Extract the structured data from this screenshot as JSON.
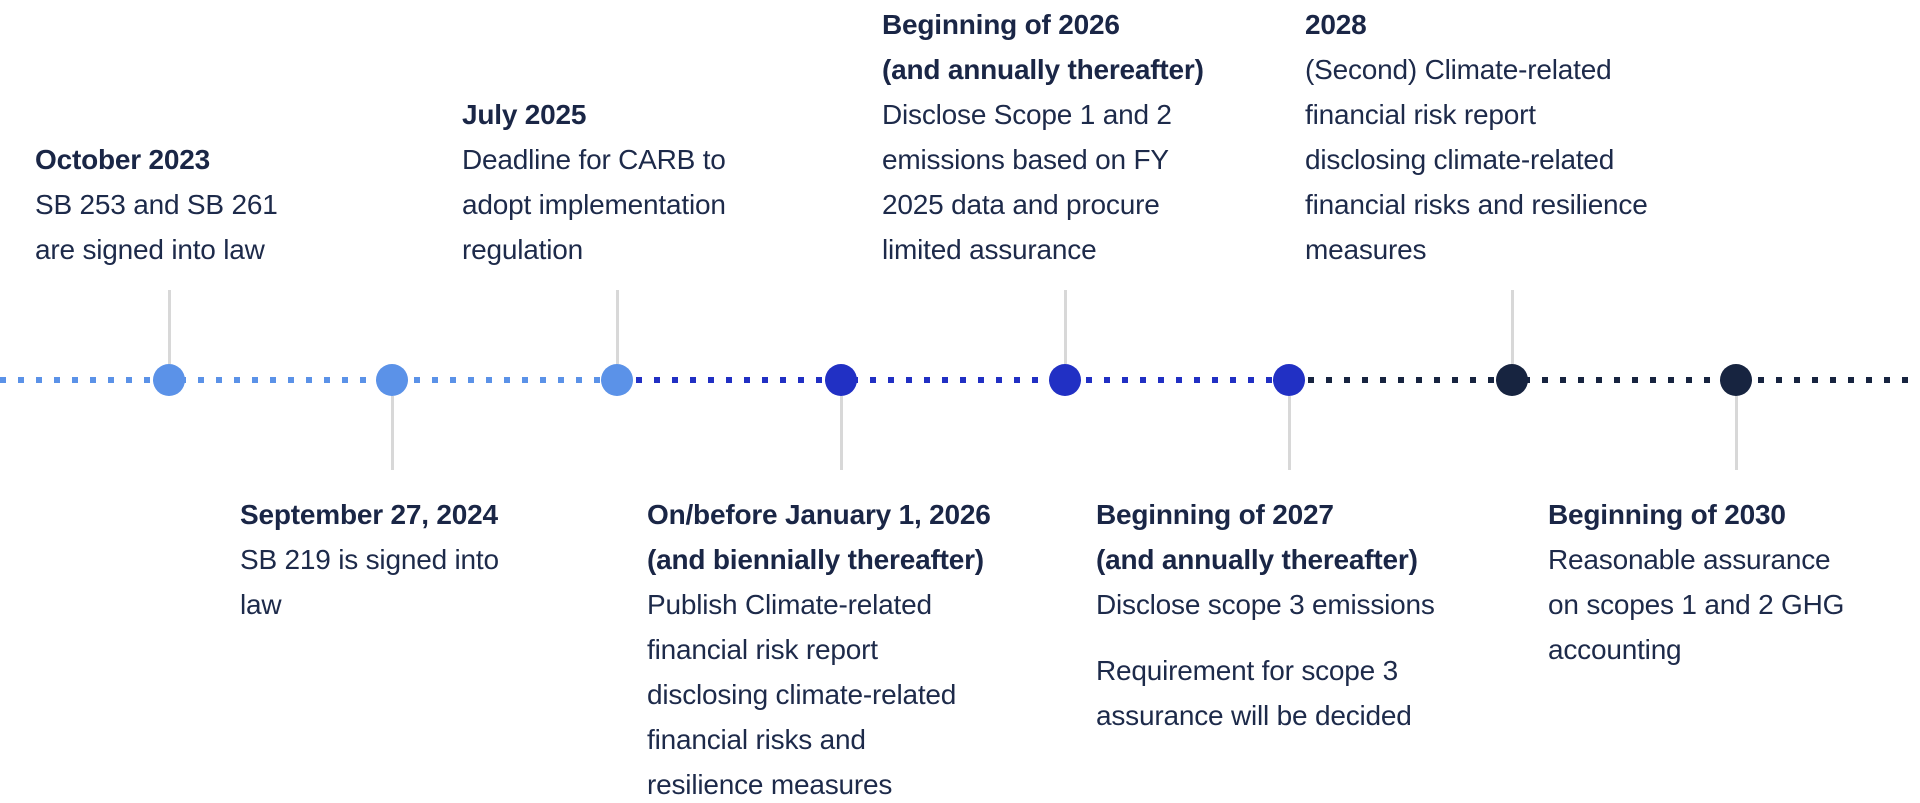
{
  "palette": {
    "light_blue": "#5b92e8",
    "royal_blue": "#2130c4",
    "navy": "#172440",
    "text_navy": "#1d2a4a",
    "stem_gray": "#d8d8d8"
  },
  "timeline": {
    "line_segments": [
      {
        "phase": "signed-laws-period",
        "color": "light_blue"
      },
      {
        "phase": "first-compliance-period",
        "color": "royal_blue"
      },
      {
        "phase": "future-period",
        "color": "navy"
      }
    ],
    "milestones": [
      {
        "id": "oct-2023",
        "side": "above",
        "color": "light_blue",
        "lines": [
          {
            "text": "October 2023",
            "bold": true
          },
          {
            "text": "SB 253 and SB 261",
            "bold": false
          },
          {
            "text": "are signed into law",
            "bold": false
          }
        ]
      },
      {
        "id": "sep-27-2024",
        "side": "below",
        "color": "light_blue",
        "lines": [
          {
            "text": "September 27, 2024",
            "bold": true
          },
          {
            "text": "SB 219 is signed into",
            "bold": false
          },
          {
            "text": "law",
            "bold": false
          }
        ]
      },
      {
        "id": "jul-2025",
        "side": "above",
        "color": "light_blue",
        "lines": [
          {
            "text": "July 2025",
            "bold": true
          },
          {
            "text": "Deadline for CARB to",
            "bold": false
          },
          {
            "text": "adopt implementation",
            "bold": false
          },
          {
            "text": "regulation",
            "bold": false
          }
        ]
      },
      {
        "id": "jan-1-2026",
        "side": "below",
        "color": "royal_blue",
        "lines": [
          {
            "text": "On/before January 1, 2026",
            "bold": true
          },
          {
            "text": "(and biennially thereafter)",
            "bold": true
          },
          {
            "text": "Publish Climate-related",
            "bold": false
          },
          {
            "text": "financial risk report",
            "bold": false
          },
          {
            "text": "disclosing climate-related",
            "bold": false
          },
          {
            "text": "financial risks and",
            "bold": false
          },
          {
            "text": "resilience measures",
            "bold": false
          }
        ]
      },
      {
        "id": "beginning-2026",
        "side": "above",
        "color": "royal_blue",
        "lines": [
          {
            "text": "Beginning of 2026",
            "bold": true
          },
          {
            "text": "(and annually thereafter)",
            "bold": true
          },
          {
            "text": "Disclose Scope 1 and 2",
            "bold": false
          },
          {
            "text": "emissions based on FY",
            "bold": false
          },
          {
            "text": "2025 data and procure",
            "bold": false
          },
          {
            "text": "limited assurance",
            "bold": false
          }
        ]
      },
      {
        "id": "beginning-2027",
        "side": "below",
        "color": "royal_blue",
        "lines": [
          {
            "text": "Beginning of 2027",
            "bold": true
          },
          {
            "text": "(and annually thereafter)",
            "bold": true
          },
          {
            "text": "Disclose scope 3 emissions",
            "bold": false
          },
          {
            "text": "Requirement for scope 3",
            "bold": false,
            "new_paragraph": true
          },
          {
            "text": "assurance will be decided",
            "bold": false
          }
        ]
      },
      {
        "id": "year-2028",
        "side": "above",
        "color": "navy",
        "lines": [
          {
            "text": "2028",
            "bold": true
          },
          {
            "text": "(Second) Climate-related",
            "bold": false
          },
          {
            "text": "financial risk report",
            "bold": false
          },
          {
            "text": "disclosing climate-related",
            "bold": false
          },
          {
            "text": "financial risks and resilience",
            "bold": false
          },
          {
            "text": "measures",
            "bold": false
          }
        ]
      },
      {
        "id": "beginning-2030",
        "side": "below",
        "color": "navy",
        "lines": [
          {
            "text": "Beginning of 2030",
            "bold": true
          },
          {
            "text": "Reasonable assurance",
            "bold": false
          },
          {
            "text": "on scopes 1 and 2 GHG",
            "bold": false
          },
          {
            "text": "accounting",
            "bold": false
          }
        ]
      }
    ]
  }
}
